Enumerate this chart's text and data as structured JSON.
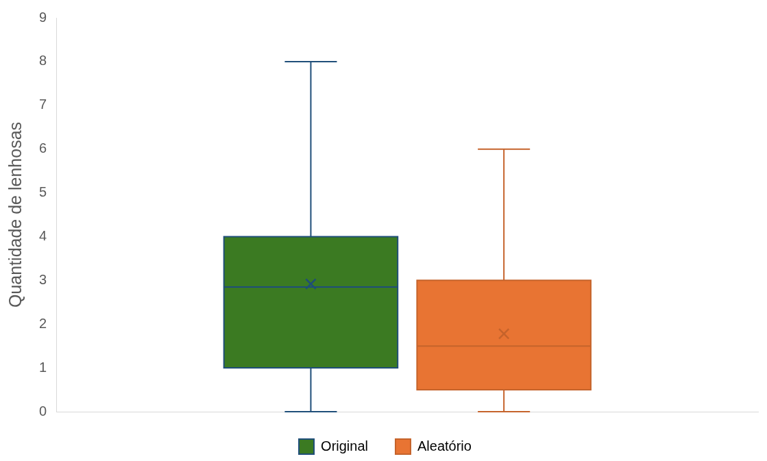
{
  "chart_data": {
    "type": "box",
    "ylabel": "Quantidade de lenhosas",
    "categories": [
      null
    ],
    "series": [
      {
        "name": "Original",
        "color": "#3b7a22",
        "boxes": [
          {
            "low": 0,
            "q1": 1,
            "median": 2.85,
            "q3": 4,
            "high": 8,
            "mean": 2.92
          }
        ]
      },
      {
        "name": "Aleatório",
        "color": "#e87433",
        "boxes": [
          {
            "low": 0,
            "q1": 0.5,
            "median": 1.5,
            "q3": 3,
            "high": 6,
            "mean": 1.78
          }
        ]
      }
    ],
    "ylim": [
      0,
      9
    ],
    "yticks": [
      0,
      1,
      2,
      3,
      4,
      5,
      6,
      7,
      8,
      9
    ],
    "grid": false,
    "legend": "bottom",
    "marker": "cross"
  }
}
